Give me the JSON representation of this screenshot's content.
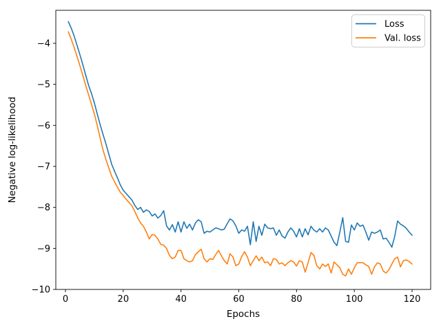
{
  "figure": {
    "background": "#ffffff"
  },
  "chart_data": {
    "type": "line",
    "title": "",
    "xlabel": "Epochs",
    "ylabel": "Negative log-likelihood",
    "grid": false,
    "legend": {
      "position": "upper right",
      "entries": [
        "Loss",
        "Val. loss"
      ]
    },
    "xlim": [
      -3.34,
      126.44
    ],
    "ylim": [
      -10.0,
      -3.195
    ],
    "xticks": [
      0,
      20,
      40,
      60,
      80,
      100,
      120
    ],
    "xtick_labels": [
      "0",
      "20",
      "40",
      "60",
      "80",
      "100",
      "120"
    ],
    "yticks": [
      -4,
      -5,
      -6,
      -7,
      -8,
      -9,
      -10
    ],
    "ytick_labels": [
      "−4",
      "−5",
      "−6",
      "−7",
      "−8",
      "−9",
      "−10"
    ],
    "x": [
      1,
      2,
      3,
      4,
      5,
      6,
      7,
      8,
      9,
      10,
      11,
      12,
      13,
      14,
      15,
      16,
      17,
      18,
      19,
      20,
      21,
      22,
      23,
      24,
      25,
      26,
      27,
      28,
      29,
      30,
      31,
      32,
      33,
      34,
      35,
      36,
      37,
      38,
      39,
      40,
      41,
      42,
      43,
      44,
      45,
      46,
      47,
      48,
      49,
      50,
      51,
      52,
      53,
      54,
      55,
      56,
      57,
      58,
      59,
      60,
      61,
      62,
      63,
      64,
      65,
      66,
      67,
      68,
      69,
      70,
      71,
      72,
      73,
      74,
      75,
      76,
      77,
      78,
      79,
      80,
      81,
      82,
      83,
      84,
      85,
      86,
      87,
      88,
      89,
      90,
      91,
      92,
      93,
      94,
      95,
      96,
      97,
      98,
      99,
      100,
      101,
      102,
      103,
      104,
      105,
      106,
      107,
      108,
      109,
      110,
      111,
      112,
      113,
      114,
      115,
      116,
      117,
      118,
      119,
      120
    ],
    "series": [
      {
        "name": "Loss",
        "color": "#1f77b4",
        "values": [
          -3.47,
          -3.63,
          -3.82,
          -4.05,
          -4.28,
          -4.52,
          -4.77,
          -5.02,
          -5.22,
          -5.45,
          -5.72,
          -5.98,
          -6.22,
          -6.45,
          -6.7,
          -6.95,
          -7.12,
          -7.28,
          -7.45,
          -7.58,
          -7.66,
          -7.74,
          -7.82,
          -7.95,
          -8.05,
          -8.0,
          -8.12,
          -8.06,
          -8.1,
          -8.21,
          -8.16,
          -8.26,
          -8.2,
          -8.08,
          -8.45,
          -8.55,
          -8.42,
          -8.6,
          -8.35,
          -8.6,
          -8.35,
          -8.51,
          -8.41,
          -8.55,
          -8.38,
          -8.3,
          -8.35,
          -8.63,
          -8.58,
          -8.6,
          -8.55,
          -8.5,
          -8.52,
          -8.55,
          -8.53,
          -8.4,
          -8.28,
          -8.33,
          -8.45,
          -8.63,
          -8.55,
          -8.58,
          -8.46,
          -8.91,
          -8.35,
          -8.83,
          -8.46,
          -8.68,
          -8.41,
          -8.5,
          -8.52,
          -8.5,
          -8.68,
          -8.55,
          -8.7,
          -8.75,
          -8.6,
          -8.5,
          -8.58,
          -8.72,
          -8.52,
          -8.72,
          -8.52,
          -8.67,
          -8.46,
          -8.55,
          -8.6,
          -8.52,
          -8.6,
          -8.5,
          -8.55,
          -8.7,
          -8.85,
          -8.93,
          -8.6,
          -8.25,
          -8.83,
          -8.85,
          -8.43,
          -8.55,
          -8.38,
          -8.46,
          -8.43,
          -8.6,
          -8.8,
          -8.6,
          -8.63,
          -8.6,
          -8.55,
          -8.77,
          -8.75,
          -8.85,
          -8.97,
          -8.7,
          -8.33,
          -8.41,
          -8.45,
          -8.51,
          -8.6,
          -8.68
        ]
      },
      {
        "name": "Val. loss",
        "color": "#ff7f0e",
        "values": [
          -3.72,
          -3.9,
          -4.1,
          -4.32,
          -4.55,
          -4.78,
          -5.02,
          -5.25,
          -5.48,
          -5.72,
          -6.0,
          -6.3,
          -6.6,
          -6.83,
          -7.04,
          -7.24,
          -7.38,
          -7.51,
          -7.63,
          -7.71,
          -7.8,
          -7.88,
          -7.96,
          -8.1,
          -8.25,
          -8.38,
          -8.46,
          -8.6,
          -8.77,
          -8.66,
          -8.68,
          -8.77,
          -8.9,
          -8.92,
          -9.0,
          -9.17,
          -9.25,
          -9.21,
          -9.05,
          -9.05,
          -9.25,
          -9.3,
          -9.33,
          -9.3,
          -9.15,
          -9.08,
          -9.02,
          -9.25,
          -9.33,
          -9.25,
          -9.27,
          -9.15,
          -9.05,
          -9.18,
          -9.3,
          -9.38,
          -9.13,
          -9.21,
          -9.42,
          -9.38,
          -9.2,
          -9.08,
          -9.21,
          -9.42,
          -9.3,
          -9.18,
          -9.3,
          -9.21,
          -9.35,
          -9.33,
          -9.42,
          -9.25,
          -9.27,
          -9.38,
          -9.35,
          -9.42,
          -9.35,
          -9.3,
          -9.33,
          -9.43,
          -9.3,
          -9.33,
          -9.58,
          -9.35,
          -9.1,
          -9.17,
          -9.42,
          -9.5,
          -9.38,
          -9.44,
          -9.38,
          -9.6,
          -9.33,
          -9.4,
          -9.47,
          -9.63,
          -9.67,
          -9.5,
          -9.63,
          -9.47,
          -9.35,
          -9.35,
          -9.35,
          -9.4,
          -9.44,
          -9.63,
          -9.45,
          -9.35,
          -9.38,
          -9.55,
          -9.6,
          -9.52,
          -9.38,
          -9.25,
          -9.21,
          -9.45,
          -9.3,
          -9.28,
          -9.32,
          -9.38
        ]
      }
    ]
  }
}
